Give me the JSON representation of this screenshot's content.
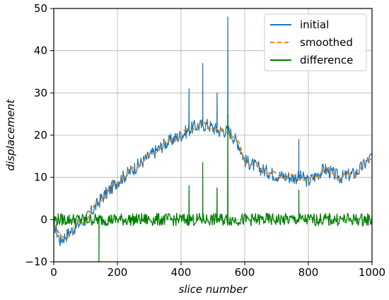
{
  "chart_data": {
    "type": "line",
    "title": "",
    "xlabel": "slice number",
    "ylabel": "displacement",
    "xlim": [
      0,
      1000
    ],
    "ylim": [
      -10,
      50
    ],
    "xticks": [
      0,
      200,
      400,
      600,
      800,
      1000
    ],
    "yticks": [
      -10,
      0,
      10,
      20,
      30,
      40,
      50
    ],
    "grid": true,
    "legend_position": "top-right",
    "series": [
      {
        "name": "initial",
        "color": "#1f77b4",
        "style": "solid",
        "x": [
          0,
          20,
          50,
          80,
          100,
          150,
          200,
          250,
          300,
          350,
          400,
          440,
          480,
          520,
          550,
          580,
          600,
          650,
          700,
          750,
          780,
          800,
          850,
          900,
          950,
          1000
        ],
        "y": [
          -1,
          -5,
          -3,
          -1,
          0,
          5,
          9,
          12,
          15,
          18,
          20,
          22,
          22.5,
          21,
          21,
          18,
          14,
          12,
          10.5,
          10,
          10,
          9,
          12,
          10,
          11,
          15
        ],
        "spikes": [
          {
            "x": 425,
            "y": 31
          },
          {
            "x": 468,
            "y": 37
          },
          {
            "x": 513,
            "y": 30
          },
          {
            "x": 547,
            "y": 48
          },
          {
            "x": 770,
            "y": 19
          }
        ]
      },
      {
        "name": "smoothed",
        "color": "#ff7f0e",
        "style": "dashed",
        "x": [
          0,
          20,
          50,
          80,
          100,
          150,
          200,
          250,
          300,
          350,
          400,
          440,
          480,
          520,
          550,
          580,
          600,
          650,
          700,
          750,
          780,
          800,
          850,
          900,
          950,
          1000
        ],
        "y": [
          -1,
          -4.5,
          -3,
          -1,
          0,
          5,
          9,
          12,
          15,
          18,
          20,
          22,
          22.5,
          21,
          21,
          18,
          14,
          12,
          10.5,
          10,
          10,
          9,
          12,
          10,
          11,
          15
        ]
      },
      {
        "name": "difference",
        "color": "#008000",
        "style": "solid",
        "x": [
          0,
          1000
        ],
        "y": [
          0,
          0
        ],
        "spikes": [
          {
            "x": 142,
            "y": -10
          },
          {
            "x": 425,
            "y": 8
          },
          {
            "x": 468,
            "y": 13.5
          },
          {
            "x": 513,
            "y": 7.5
          },
          {
            "x": 547,
            "y": 25
          },
          {
            "x": 770,
            "y": 7
          }
        ]
      }
    ]
  }
}
